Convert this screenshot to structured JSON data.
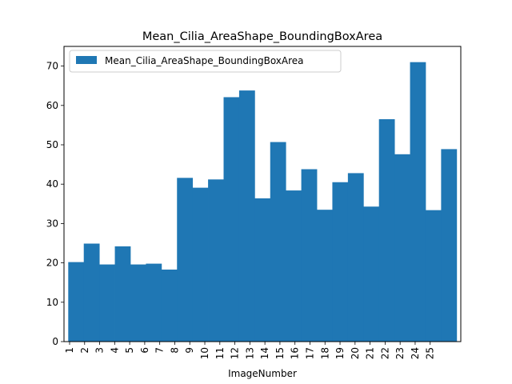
{
  "chart_data": {
    "type": "bar",
    "title": "Mean_Cilia_AreaShape_BoundingBoxArea",
    "xlabel": "ImageNumber",
    "ylabel": "",
    "ylim": [
      0,
      75
    ],
    "yticks": [
      0,
      10,
      20,
      30,
      40,
      50,
      60,
      70
    ],
    "categories": [
      "1",
      "2",
      "3",
      "4",
      "5",
      "6",
      "7",
      "8",
      "9",
      "10",
      "11",
      "12",
      "13",
      "14",
      "15",
      "16",
      "17",
      "18",
      "19",
      "20",
      "21",
      "22",
      "23",
      "24",
      "25"
    ],
    "series": [
      {
        "name": "Mean_Cilia_AreaShape_BoundingBoxArea",
        "color": "#1f77b4",
        "values": [
          20.2,
          24.9,
          19.6,
          24.2,
          19.6,
          19.8,
          18.3,
          41.6,
          39.1,
          41.2,
          62.1,
          63.8,
          36.4,
          50.7,
          38.4,
          43.8,
          33.5,
          40.5,
          42.8,
          34.3,
          56.5,
          47.6,
          71.0,
          33.4,
          48.9
        ]
      }
    ],
    "grid": false,
    "legend_position": "top-left"
  }
}
